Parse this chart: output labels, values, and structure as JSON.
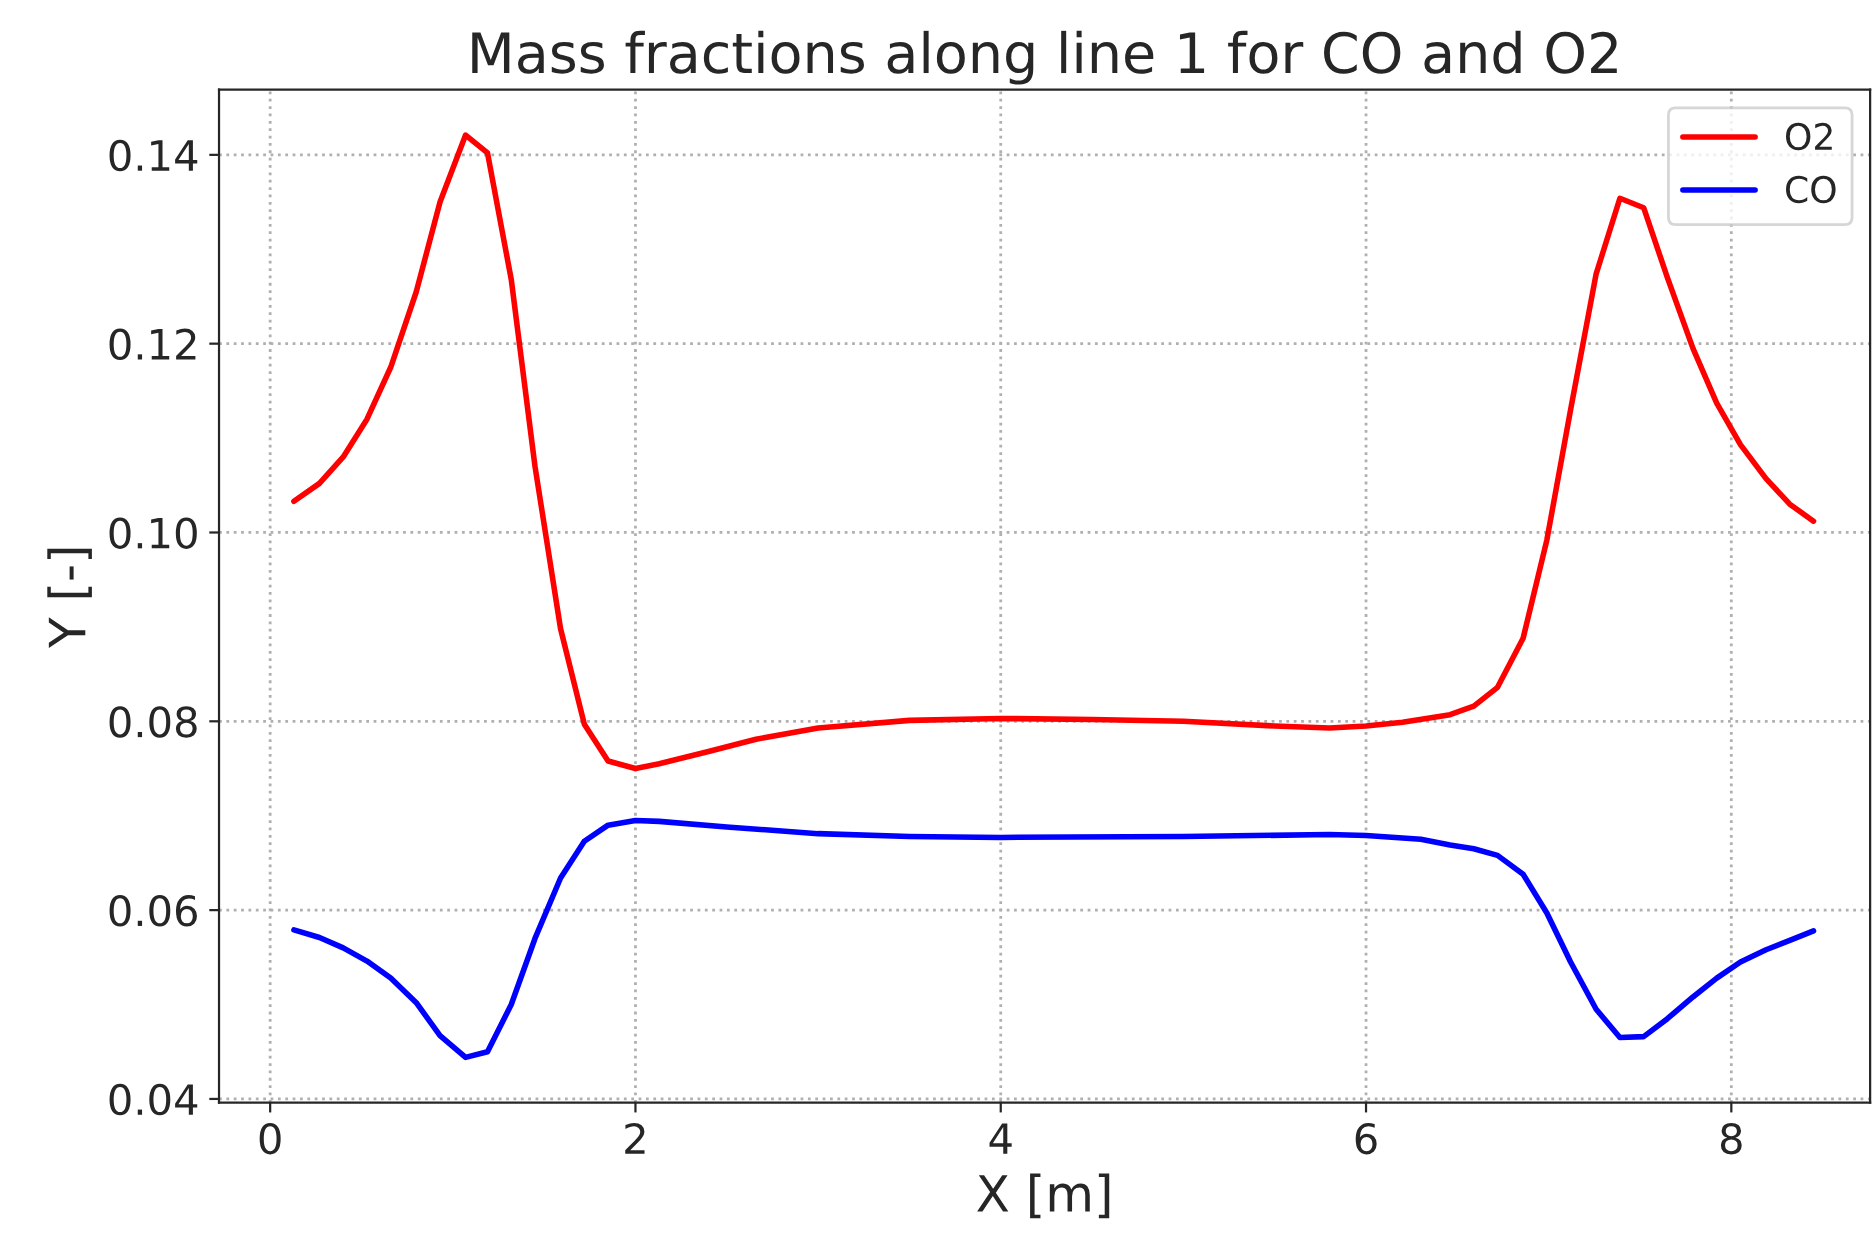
{
  "chart_data": {
    "type": "line",
    "title": "Mass fractions along line 1 for CO and O2",
    "xlabel": "X [m]",
    "ylabel": "Y [-]",
    "xlim": [
      -0.28,
      8.76
    ],
    "ylim": [
      0.0396,
      0.1469
    ],
    "xticks": [
      0,
      2,
      4,
      6,
      8
    ],
    "yticks": [
      0.04,
      0.06,
      0.08,
      {
        "value": 0.1,
        "label": "0.10"
      },
      0.12,
      0.14
    ],
    "grid": true,
    "legend": "top right",
    "line_style": "solid",
    "marker": "none",
    "series": [
      {
        "name": "O2",
        "color": "#ff0000",
        "x": [
          0.13,
          0.27,
          0.4,
          0.53,
          0.66,
          0.8,
          0.93,
          1.07,
          1.19,
          1.32,
          1.45,
          1.59,
          1.72,
          1.85,
          2.0,
          2.13,
          2.4,
          2.66,
          3.0,
          3.5,
          4.0,
          4.5,
          5.0,
          5.5,
          5.8,
          6.0,
          6.2,
          6.46,
          6.59,
          6.72,
          6.86,
          6.99,
          7.12,
          7.26,
          7.39,
          7.52,
          7.65,
          7.79,
          7.92,
          8.05,
          8.19,
          8.32,
          8.45
        ],
        "values": [
          0.1033,
          0.1052,
          0.108,
          0.112,
          0.1175,
          0.1255,
          0.135,
          0.1421,
          0.1402,
          0.1268,
          0.107,
          0.0898,
          0.0797,
          0.0758,
          0.075,
          0.0755,
          0.0768,
          0.0781,
          0.0793,
          0.0801,
          0.0803,
          0.0802,
          0.08,
          0.0795,
          0.0793,
          0.0795,
          0.0799,
          0.0807,
          0.0816,
          0.0836,
          0.0888,
          0.0992,
          0.113,
          0.1274,
          0.1354,
          0.1344,
          0.127,
          0.1195,
          0.1137,
          0.1093,
          0.1057,
          0.103,
          0.1012
        ]
      },
      {
        "name": "CO",
        "color": "#0000ff",
        "x": [
          0.13,
          0.27,
          0.4,
          0.53,
          0.66,
          0.8,
          0.93,
          1.07,
          1.19,
          1.32,
          1.45,
          1.59,
          1.72,
          1.85,
          2.0,
          2.13,
          2.5,
          3.0,
          3.5,
          4.0,
          5.0,
          5.8,
          6.0,
          6.3,
          6.46,
          6.59,
          6.72,
          6.86,
          6.99,
          7.12,
          7.26,
          7.39,
          7.52,
          7.65,
          7.79,
          7.92,
          8.05,
          8.19,
          8.32,
          8.45
        ],
        "values": [
          0.0579,
          0.0571,
          0.056,
          0.0546,
          0.0528,
          0.0502,
          0.0467,
          0.0444,
          0.045,
          0.05,
          0.057,
          0.0634,
          0.0673,
          0.069,
          0.0695,
          0.0694,
          0.0688,
          0.0681,
          0.0678,
          0.0677,
          0.0678,
          0.068,
          0.0679,
          0.0675,
          0.0669,
          0.0665,
          0.0658,
          0.0638,
          0.0597,
          0.0545,
          0.0495,
          0.0465,
          0.0466,
          0.0485,
          0.0508,
          0.0528,
          0.0545,
          0.0558,
          0.0568,
          0.0578
        ]
      }
    ]
  }
}
